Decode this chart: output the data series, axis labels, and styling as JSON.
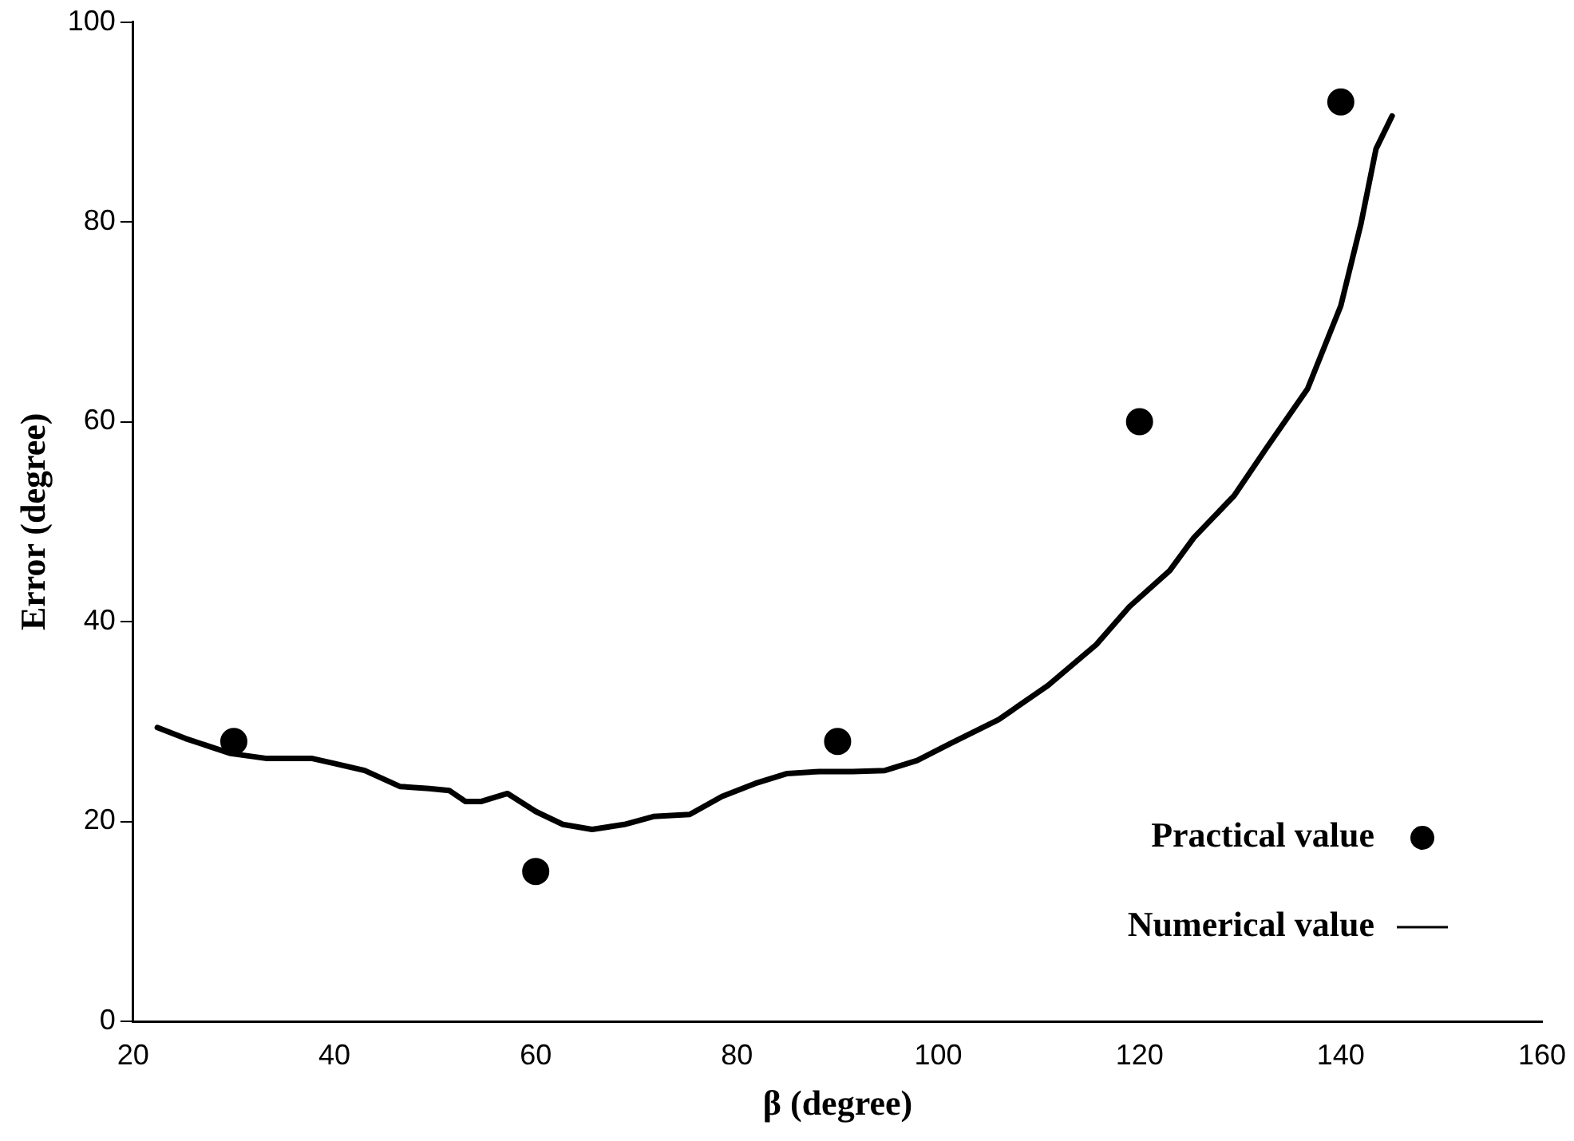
{
  "chart_data": {
    "type": "scatter",
    "xlabel": "β (degree)",
    "ylabel": "Error (degree)",
    "xlim": [
      20,
      160
    ],
    "xticks": [
      20,
      40,
      60,
      80,
      100,
      120,
      140,
      160
    ],
    "ylim": [
      0,
      100
    ],
    "yticks": [
      0,
      20,
      40,
      60,
      80,
      100
    ],
    "grid": false,
    "legend": "bottom right",
    "series": [
      {
        "name": "Practical value",
        "marker": "circle",
        "color": "#000000",
        "x": [
          30,
          60,
          90,
          120,
          140
        ],
        "values": [
          28,
          15,
          28,
          60,
          92
        ]
      },
      {
        "name": "Numerical value",
        "type": "line",
        "marker": "none",
        "line_style": "solid",
        "color": "#000000",
        "x": [
          22.4,
          25.2,
          29.7,
          33.3,
          37.8,
          40,
          43,
          46.5,
          49.4,
          51.4,
          53,
          54.6,
          57.2,
          60,
          62.7,
          65.6,
          68.8,
          71.7,
          75.3,
          78.5,
          81.8,
          85,
          88.2,
          91.5,
          94.7,
          97.9,
          101.2,
          106,
          110.9,
          115.7,
          119,
          123,
          125.4,
          129.4,
          132.7,
          136.7,
          140,
          142,
          143.5,
          145.1
        ],
        "values": [
          29.4,
          28.3,
          26.8,
          26.3,
          26.3,
          25.8,
          25.1,
          23.5,
          23.3,
          23.1,
          22,
          22,
          22.8,
          21,
          19.7,
          19.2,
          19.7,
          20.5,
          20.7,
          22.5,
          23.8,
          24.8,
          25,
          25,
          25.1,
          26.1,
          27.8,
          30.2,
          33.6,
          37.7,
          41.5,
          45.1,
          48.4,
          52.6,
          57.5,
          63.3,
          71.6,
          79.8,
          87.3,
          90.6
        ]
      }
    ]
  }
}
